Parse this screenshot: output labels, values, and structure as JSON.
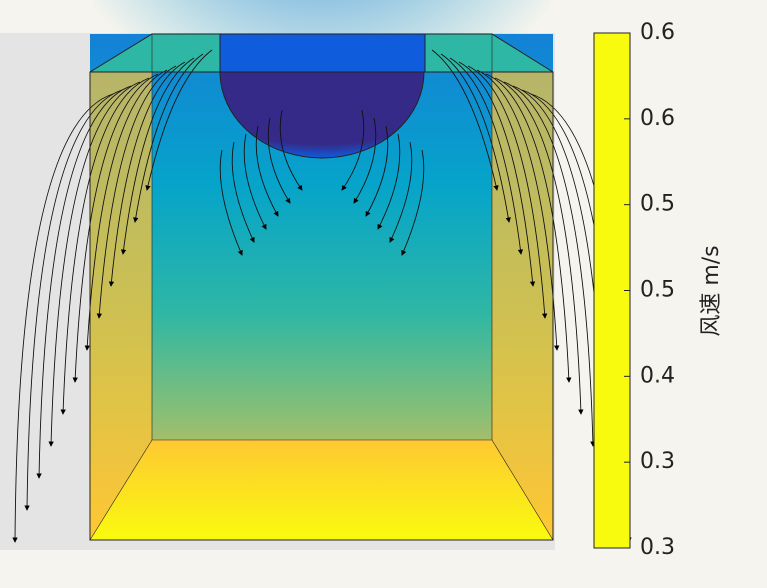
{
  "chart_data": {
    "type": "heatmap",
    "colorbar": {
      "label": "风速 m/s",
      "lim": [
        0.3,
        0.6
      ],
      "ticks": [
        {
          "value": 0.6,
          "label": "0.6"
        },
        {
          "value": 0.55,
          "label": "0.6"
        },
        {
          "value": 0.5,
          "label": "0.5"
        },
        {
          "value": 0.45,
          "label": "0.5"
        },
        {
          "value": 0.4,
          "label": "0.4"
        },
        {
          "value": 0.35,
          "label": "0.3"
        },
        {
          "value": 0.3,
          "label": "0.3"
        }
      ],
      "colormap": [
        "#f9fb0e",
        "#fec832",
        "#d1bb59",
        "#87bf77",
        "#2eb7a4",
        "#06a4ca",
        "#1481d6",
        "#0f5cdd",
        "#352a87"
      ]
    }
  }
}
